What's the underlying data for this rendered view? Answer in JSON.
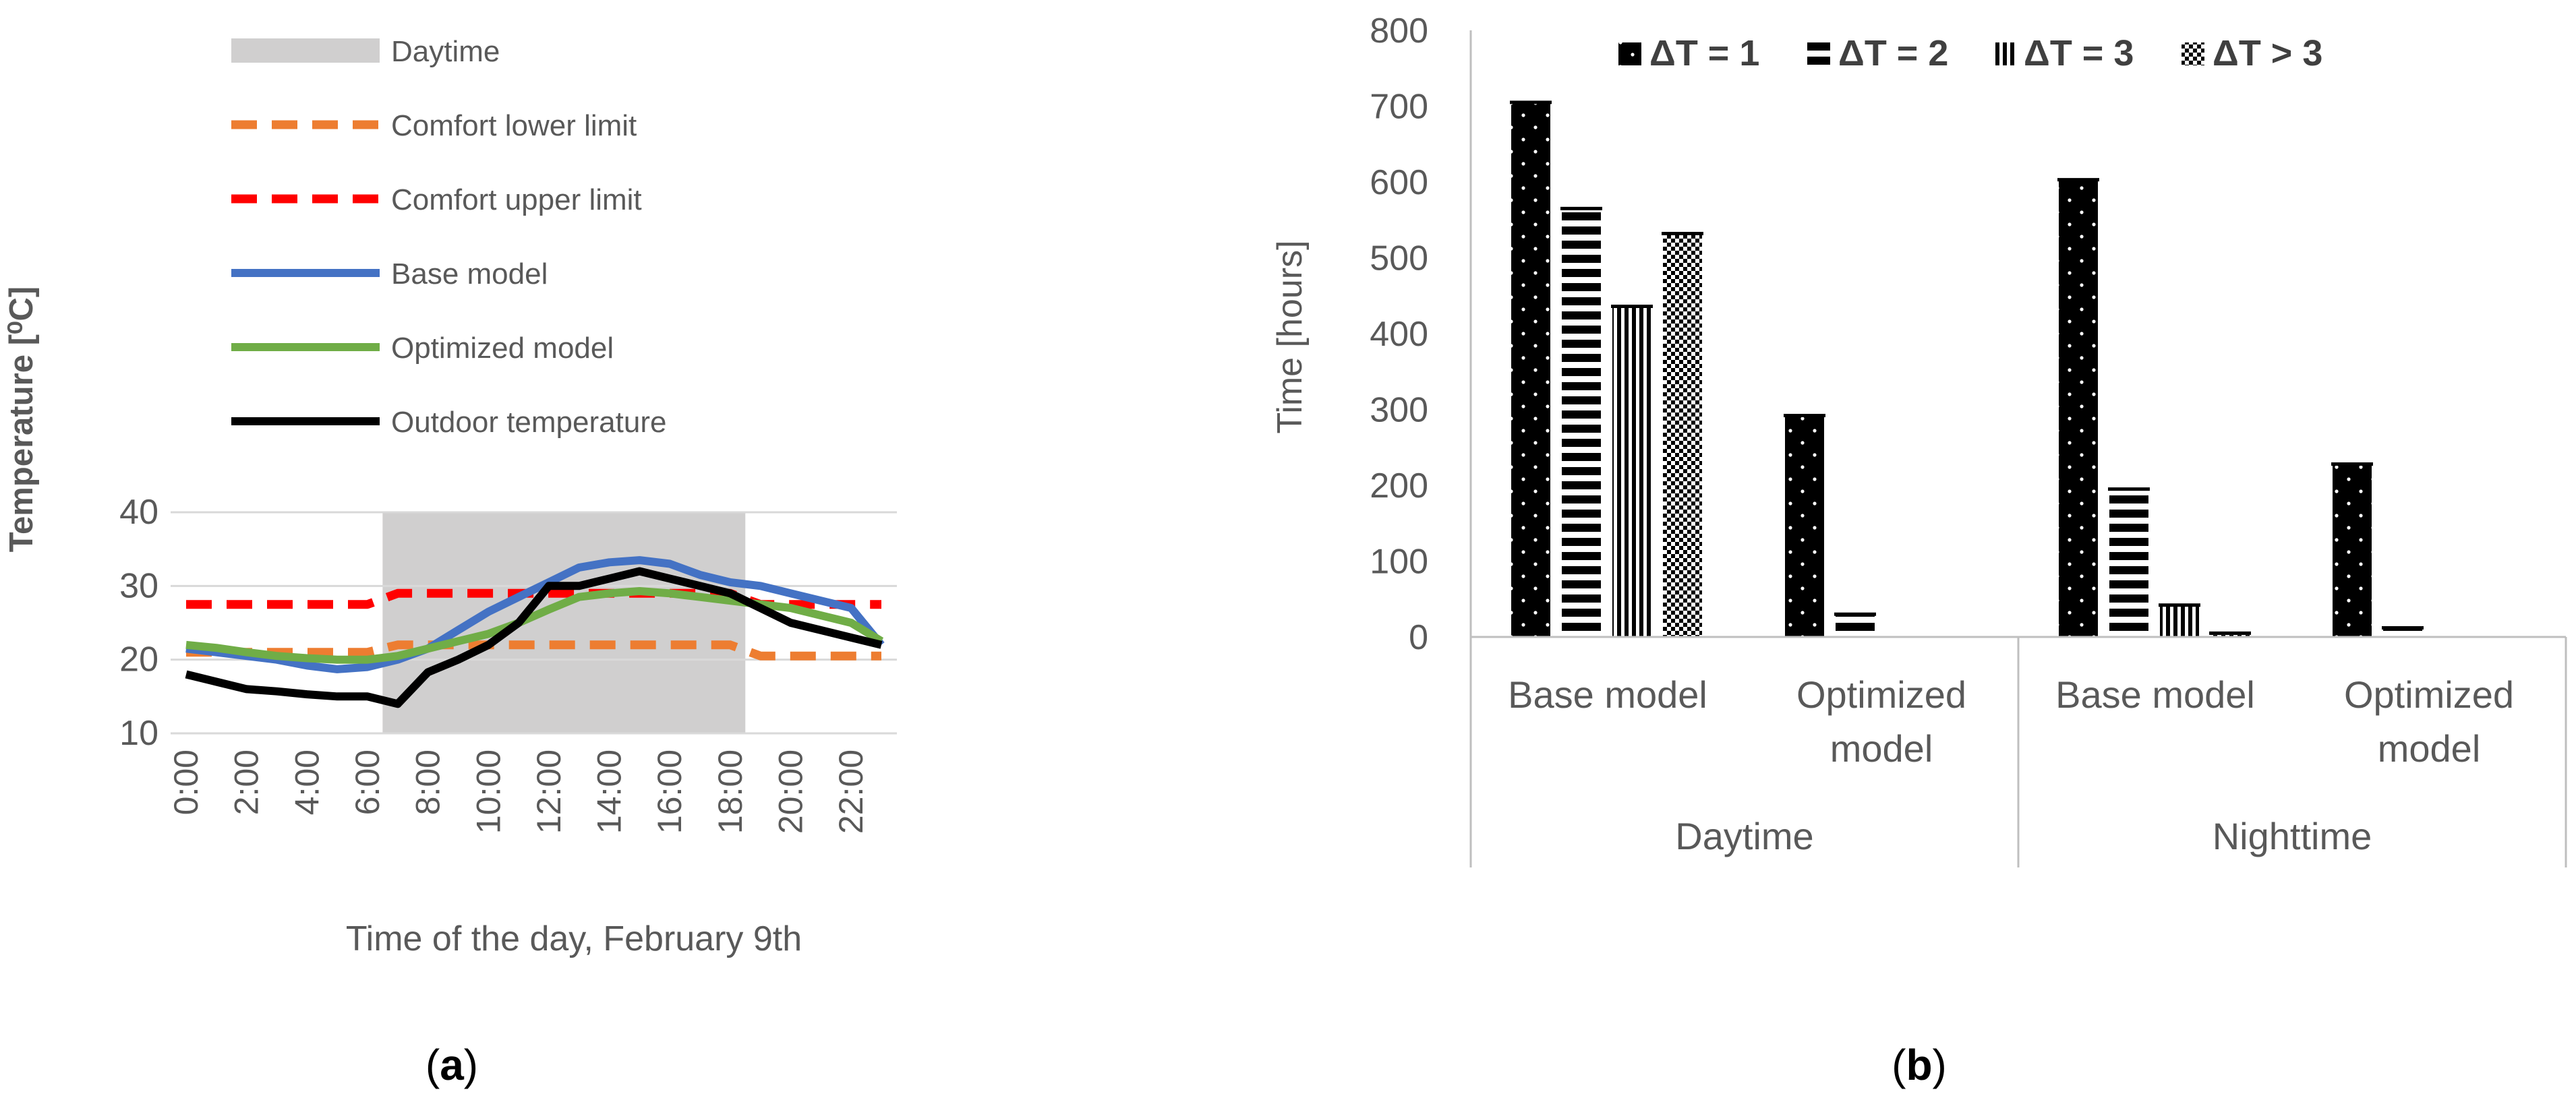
{
  "panels": {
    "a": {
      "label": "(a)",
      "label_letter": "a"
    },
    "b": {
      "label": "(b)",
      "label_letter": "b"
    }
  },
  "colors": {
    "daytime": "#d0cfcf",
    "comfort_lower": "#ed7d31",
    "comfort_upper": "#ff0000",
    "base": "#4472c4",
    "optimized": "#70ad47",
    "outdoor": "#000000",
    "axis_text": "#595959",
    "grid": "#d9d9d9"
  },
  "chart_data": [
    {
      "type": "line",
      "xlabel": "Time of the day, February 9th",
      "ylabel": "Temperature [⁰C]",
      "ylim": [
        10,
        40
      ],
      "yticks": [
        10,
        20,
        30,
        40
      ],
      "x": [
        "0:00",
        "1:00",
        "2:00",
        "3:00",
        "4:00",
        "5:00",
        "6:00",
        "7:00",
        "8:00",
        "9:00",
        "10:00",
        "11:00",
        "12:00",
        "13:00",
        "14:00",
        "15:00",
        "16:00",
        "17:00",
        "18:00",
        "19:00",
        "20:00",
        "21:00",
        "22:00",
        "23:00"
      ],
      "xtick_labels": [
        "0:00",
        "2:00",
        "4:00",
        "6:00",
        "8:00",
        "10:00",
        "12:00",
        "14:00",
        "16:00",
        "18:00",
        "20:00",
        "22:00"
      ],
      "shaded_region": {
        "name": "Daytime",
        "from_hour": 6.5,
        "to_hour": 18.5
      },
      "legend_position": "top",
      "series": [
        {
          "name": "Comfort lower limit",
          "style": "dashed",
          "color_key": "comfort_lower",
          "values": [
            21,
            21,
            21,
            21,
            21,
            21,
            21,
            22,
            22,
            22,
            22,
            22,
            22,
            22,
            22,
            22,
            22,
            22,
            22,
            20.5,
            20.5,
            20.5,
            20.5,
            20.5
          ]
        },
        {
          "name": "Comfort upper limit",
          "style": "dashed",
          "color_key": "comfort_upper",
          "values": [
            27.5,
            27.5,
            27.5,
            27.5,
            27.5,
            27.5,
            27.5,
            29,
            29,
            29,
            29,
            29,
            29,
            29,
            29,
            29,
            29,
            29,
            29,
            27.5,
            27.5,
            27.5,
            27.5,
            27.5
          ]
        },
        {
          "name": "Base model",
          "style": "solid",
          "color_key": "base",
          "values": [
            21.5,
            21,
            20.5,
            20,
            19.2,
            18.7,
            19,
            20,
            21.5,
            24,
            26.5,
            28.5,
            30.5,
            32.5,
            33.2,
            33.5,
            33,
            31.5,
            30.5,
            30,
            29,
            28,
            27,
            22
          ]
        },
        {
          "name": "Optimized model",
          "style": "solid",
          "color_key": "optimized",
          "values": [
            22,
            21.6,
            21,
            20.5,
            20.2,
            20,
            20,
            20.5,
            21.5,
            22.5,
            23.5,
            25,
            26.8,
            28.5,
            29,
            29.3,
            29,
            28.5,
            28,
            27.5,
            27,
            26,
            25,
            22.5
          ]
        },
        {
          "name": "Outdoor temperature",
          "style": "solid",
          "color_key": "outdoor",
          "values": [
            18,
            17,
            16,
            15.7,
            15.3,
            15,
            15,
            14,
            18.3,
            20,
            22,
            25,
            30,
            30,
            31,
            32,
            31,
            30,
            29,
            27,
            25,
            24,
            23,
            22
          ]
        }
      ],
      "legend_items": [
        {
          "name": "Daytime",
          "color_key": "daytime",
          "style": "box"
        },
        {
          "name": "Comfort lower limit",
          "color_key": "comfort_lower",
          "style": "dashed"
        },
        {
          "name": "Comfort upper limit",
          "color_key": "comfort_upper",
          "style": "dashed"
        },
        {
          "name": "Base model",
          "color_key": "base",
          "style": "solid"
        },
        {
          "name": "Optimized model",
          "color_key": "optimized",
          "style": "solid"
        },
        {
          "name": "Outdoor temperature",
          "color_key": "outdoor",
          "style": "solid"
        }
      ]
    },
    {
      "type": "bar",
      "ylabel": "Time [hours]",
      "ylim": [
        0,
        800
      ],
      "yticks": [
        0,
        100,
        200,
        300,
        400,
        500,
        600,
        700,
        800
      ],
      "grid": false,
      "legend_position": "top",
      "groups": [
        {
          "label": "Daytime",
          "categories": [
            "Base model",
            "Optimized model"
          ]
        },
        {
          "label": "Nighttime",
          "categories": [
            "Base model",
            "Optimized model"
          ]
        }
      ],
      "categories": [
        "Base model",
        "Optimized model",
        "Base model",
        "Optimized model"
      ],
      "category_lines": [
        [
          "Base model"
        ],
        [
          "Optimized",
          "model"
        ],
        [
          "Base model"
        ],
        [
          "Optimized",
          "model"
        ]
      ],
      "series": [
        {
          "name": "ΔT = 1",
          "pattern": "dots",
          "values": [
            705,
            292,
            603,
            228
          ]
        },
        {
          "name": "ΔT = 2",
          "pattern": "hstripes",
          "values": [
            565,
            30,
            195,
            12
          ]
        },
        {
          "name": "ΔT = 3",
          "pattern": "vstripes",
          "values": [
            436,
            0,
            42,
            0
          ]
        },
        {
          "name": "ΔT > 3",
          "pattern": "checker",
          "values": [
            532,
            0,
            5,
            0
          ]
        }
      ]
    }
  ]
}
